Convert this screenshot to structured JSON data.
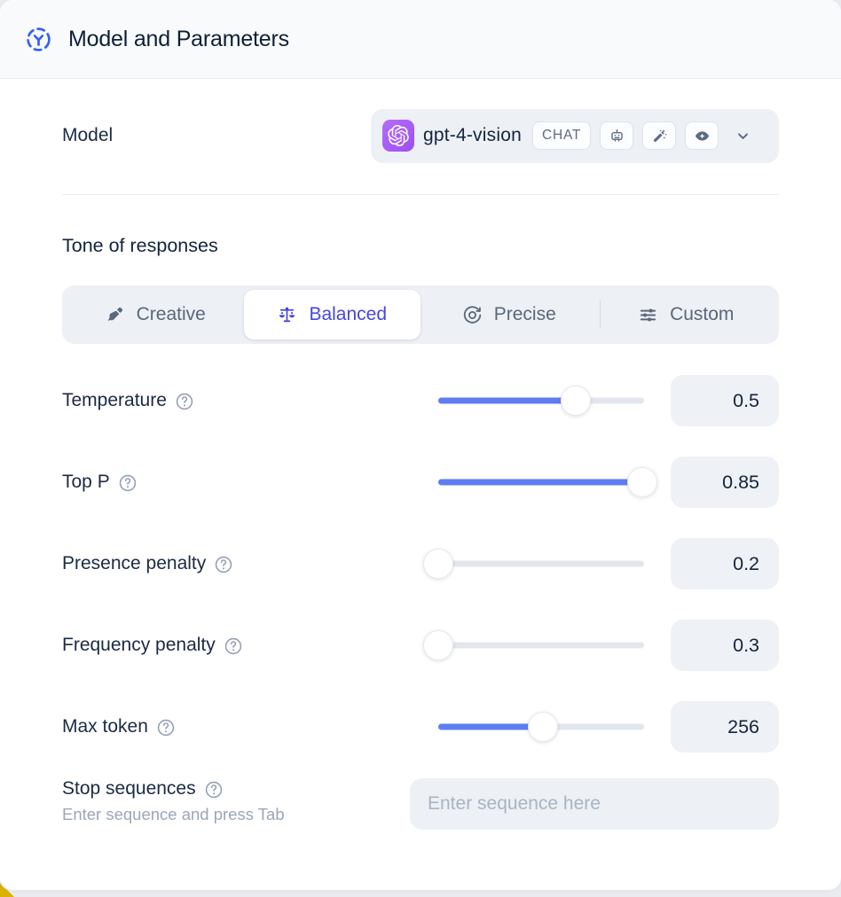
{
  "header": {
    "title": "Model and Parameters",
    "icon": "model-hub-icon"
  },
  "model": {
    "label": "Model",
    "selected_model": "gpt-4-vision",
    "provider_icon": "openai-logo",
    "type_badge": "CHAT",
    "capability_icons": [
      "robot-icon",
      "magic-wand-icon",
      "vision-eye-icon"
    ],
    "chevron_icon": "chevron-down-icon"
  },
  "tone": {
    "heading": "Tone of responses",
    "options": [
      {
        "label": "Creative",
        "icon": "paintbrush-icon",
        "selected": false
      },
      {
        "label": "Balanced",
        "icon": "balance-scale-icon",
        "selected": true
      },
      {
        "label": "Precise",
        "icon": "target-icon",
        "selected": false
      },
      {
        "label": "Custom",
        "icon": "sliders-icon",
        "selected": false
      }
    ]
  },
  "parameters": [
    {
      "label": "Temperature",
      "value": "0.5",
      "fill_percent": 67
    },
    {
      "label": "Top P",
      "value": "0.85",
      "fill_percent": 99
    },
    {
      "label": "Presence penalty",
      "value": "0.2",
      "fill_percent": 0
    },
    {
      "label": "Frequency penalty",
      "value": "0.3",
      "fill_percent": 0
    },
    {
      "label": "Max token",
      "value": "256",
      "fill_percent": 51
    }
  ],
  "stop_sequences": {
    "label": "Stop sequences",
    "helper": "Enter sequence and press Tab",
    "placeholder": "Enter sequence here"
  },
  "colors": {
    "slider_blue": "#5f7df2",
    "selected_indigo": "#4645df",
    "header_icon_blue": "#3560f6",
    "provider_purple": "#a55cf6",
    "control_gray": "#edf0f5"
  }
}
